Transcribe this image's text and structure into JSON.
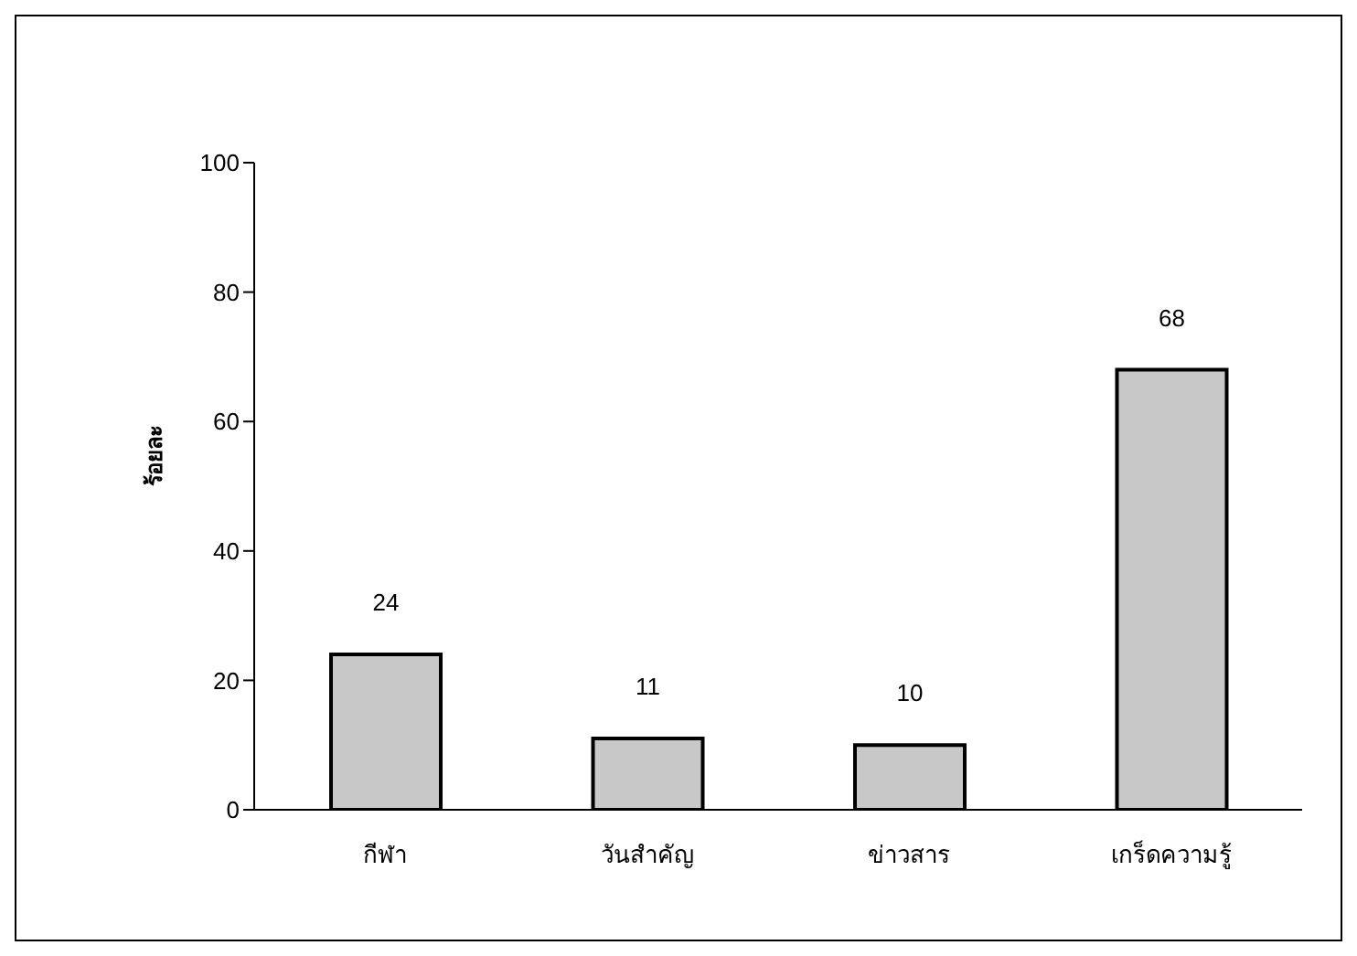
{
  "chart_data": {
    "type": "bar",
    "ylabel": "ร้อยละ",
    "categories": [
      "กีฬา",
      "วันสำคัญ",
      "ข่าวสาร",
      "เกร็ดความรู้"
    ],
    "values": [
      24,
      11,
      10,
      68
    ],
    "color": "#c8c8c8",
    "ylim": [
      0,
      100
    ],
    "yticks": [
      0,
      20,
      40,
      60,
      80,
      100
    ],
    "data_labels": true,
    "grid": false,
    "legend": false
  }
}
